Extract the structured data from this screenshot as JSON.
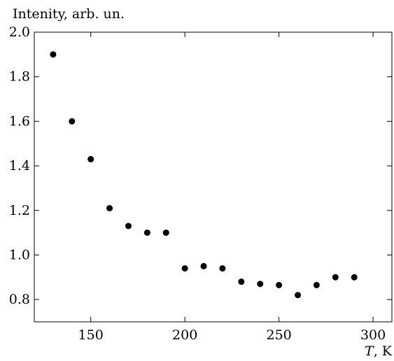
{
  "chart_data": {
    "type": "scatter",
    "ylabel": "Intenity, arb. un.",
    "xlabel": "T, K",
    "xlabel_italic_part": "T",
    "xlabel_rest": ", K",
    "xlim": [
      120,
      310
    ],
    "ylim": [
      0.7,
      2.0
    ],
    "xticks": [
      150,
      200,
      250,
      300
    ],
    "yticks": [
      0.8,
      1.0,
      1.2,
      1.4,
      1.6,
      1.8,
      2.0
    ],
    "xtick_labels": [
      "150",
      "200",
      "250",
      "300"
    ],
    "ytick_labels": [
      "0.8",
      "1.0",
      "1.2",
      "1.4",
      "1.6",
      "1.8",
      "2.0"
    ],
    "grid": false,
    "marker_color": "#000000",
    "points": [
      {
        "x": 130,
        "y": 1.9
      },
      {
        "x": 140,
        "y": 1.6
      },
      {
        "x": 150,
        "y": 1.43
      },
      {
        "x": 160,
        "y": 1.21
      },
      {
        "x": 170,
        "y": 1.13
      },
      {
        "x": 180,
        "y": 1.1
      },
      {
        "x": 190,
        "y": 1.1
      },
      {
        "x": 200,
        "y": 0.94
      },
      {
        "x": 210,
        "y": 0.95
      },
      {
        "x": 220,
        "y": 0.94
      },
      {
        "x": 230,
        "y": 0.88
      },
      {
        "x": 240,
        "y": 0.87
      },
      {
        "x": 250,
        "y": 0.865
      },
      {
        "x": 260,
        "y": 0.82
      },
      {
        "x": 270,
        "y": 0.865
      },
      {
        "x": 280,
        "y": 0.9
      },
      {
        "x": 290,
        "y": 0.9
      }
    ]
  }
}
